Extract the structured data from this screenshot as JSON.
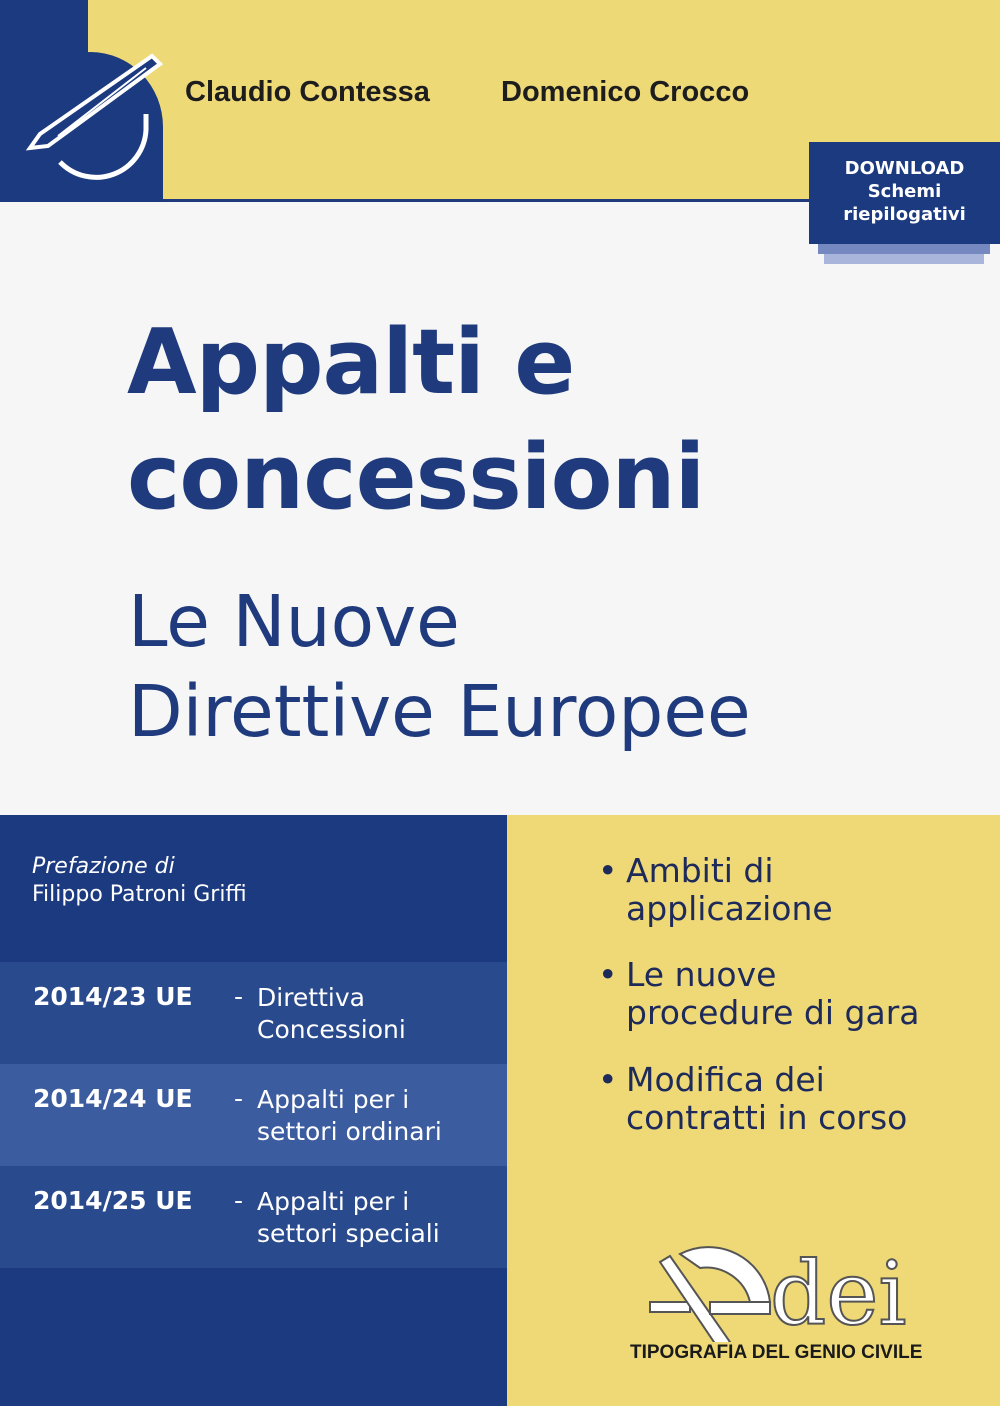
{
  "authors": [
    "Claudio Contessa",
    "Domenico Crocco"
  ],
  "download": {
    "line1": "DOWNLOAD",
    "line2": "Schemi",
    "line3": "riepilogativi"
  },
  "title": {
    "line1": "Appalti e",
    "line2": "concessioni"
  },
  "subtitle": {
    "line1": "Le Nuove",
    "line2": "Direttive Europee"
  },
  "preface": {
    "label": "Prefazione di",
    "name": "Filippo Patroni Griffi"
  },
  "directives": [
    {
      "code": "2014/23 UE",
      "desc": "Direttiva Concessioni"
    },
    {
      "code": "2014/24 UE",
      "desc": "Appalti per i settori ordinari"
    },
    {
      "code": "2014/25 UE",
      "desc": "Appalti per i settori speciali"
    }
  ],
  "bullets": [
    "Ambiti di applicazione",
    "Le nuove procedure di gara",
    "Modifica dei contratti in corso"
  ],
  "publisher": {
    "logo": "dei",
    "name": "TIPOGRAFIA DEL GENIO CIVILE"
  },
  "colors": {
    "navy": "#1c3a7f",
    "yellow": "#eed977",
    "white": "#f5f6f5"
  }
}
